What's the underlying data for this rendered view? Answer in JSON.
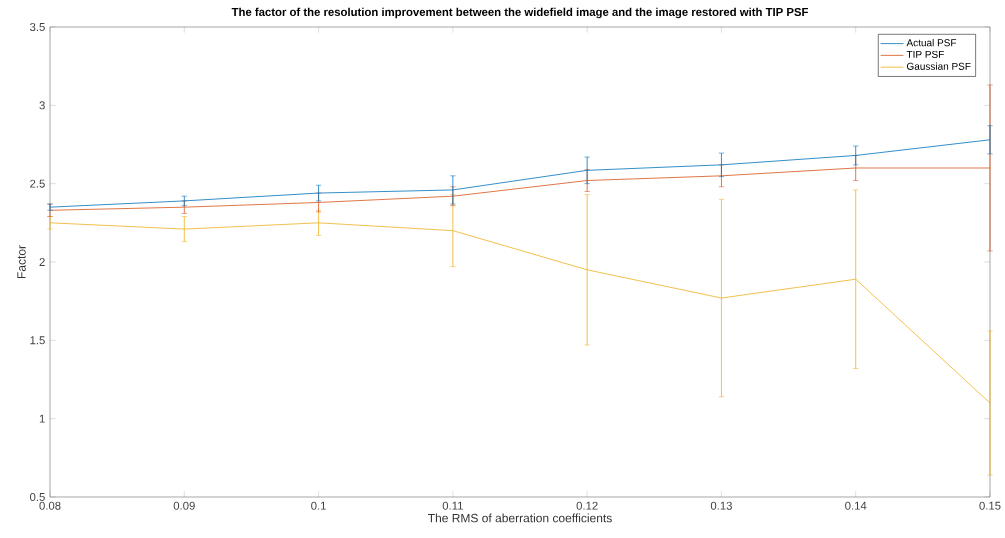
{
  "chart_data": {
    "type": "line",
    "title": "The factor of the resolution improvement between the widefield image and the image restored with TIP PSF",
    "xlabel": "The RMS of aberration coefficients",
    "ylabel": "Factor",
    "x": [
      0.08,
      0.09,
      0.1,
      0.11,
      0.12,
      0.13,
      0.14,
      0.15
    ],
    "series": [
      {
        "name": "Actual PSF",
        "color": "#0072bd",
        "values": [
          2.35,
          2.39,
          2.44,
          2.46,
          2.585,
          2.62,
          2.68,
          2.78
        ],
        "errors": [
          0.02,
          0.03,
          0.05,
          0.09,
          0.085,
          0.075,
          0.06,
          0.09
        ]
      },
      {
        "name": "TIP PSF",
        "color": "#d95319",
        "values": [
          2.33,
          2.35,
          2.38,
          2.42,
          2.52,
          2.55,
          2.6,
          2.6
        ],
        "errors": [
          0.04,
          0.04,
          0.06,
          0.06,
          0.07,
          0.07,
          0.08,
          0.53
        ]
      },
      {
        "name": "Gaussian PSF",
        "color": "#edb120",
        "values": [
          2.25,
          2.21,
          2.25,
          2.2,
          1.95,
          1.77,
          1.89,
          1.1
        ],
        "errors": [
          0.04,
          0.08,
          0.08,
          0.23,
          0.48,
          0.63,
          0.57,
          0.46
        ]
      }
    ],
    "xlim": [
      0.08,
      0.15
    ],
    "xticks": [
      0.08,
      0.09,
      0.1,
      0.11,
      0.12,
      0.13,
      0.14,
      0.15
    ],
    "ylim": [
      0.5,
      3.5
    ],
    "yticks": [
      0.5,
      1,
      1.5,
      2,
      2.5,
      3,
      3.5
    ],
    "grid": false,
    "legend": "top right",
    "marker": "none",
    "line_style": "solid"
  }
}
